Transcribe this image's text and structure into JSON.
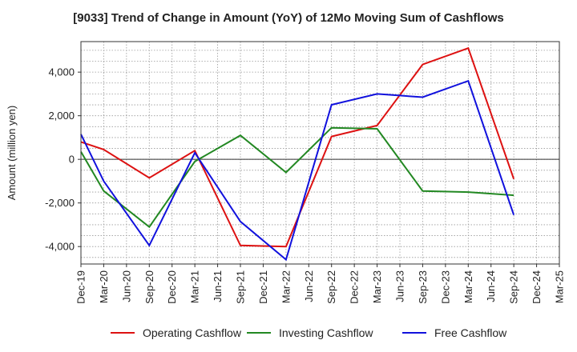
{
  "chart_data": {
    "type": "line",
    "title": "[9033]  Trend of Change in Amount (YoY) of 12Mo Moving Sum of Cashflows",
    "xlabel": "",
    "ylabel": "Amount (million yen)",
    "ylim": [
      -4800,
      5400
    ],
    "yticks": [
      -4000,
      -2000,
      0,
      2000,
      4000
    ],
    "ytick_labels": [
      "-4,000",
      "-2,000",
      "0",
      "2,000",
      "4,000"
    ],
    "grid": true,
    "legend_position": "bottom",
    "categories": [
      "Dec-19",
      "Mar-20",
      "Jun-20",
      "Sep-20",
      "Dec-20",
      "Mar-21",
      "Jun-21",
      "Sep-21",
      "Dec-21",
      "Mar-22",
      "Jun-22",
      "Sep-22",
      "Dec-22",
      "Mar-23",
      "Jun-23",
      "Sep-23",
      "Dec-23",
      "Mar-24",
      "Jun-24",
      "Sep-24",
      "Dec-24",
      "Mar-25"
    ],
    "series": [
      {
        "name": "Operating Cashflow",
        "color": "#dd1111",
        "values": [
          800,
          450,
          null,
          -850,
          null,
          400,
          null,
          -3950,
          null,
          -4000,
          null,
          1050,
          null,
          1550,
          null,
          4350,
          null,
          5100,
          null,
          -900,
          null,
          null
        ]
      },
      {
        "name": "Investing Cashflow",
        "color": "#228822",
        "values": [
          350,
          -1450,
          null,
          -3100,
          null,
          -100,
          null,
          1100,
          null,
          -600,
          null,
          1450,
          null,
          1400,
          null,
          -1450,
          null,
          -1500,
          null,
          -1650,
          null,
          null
        ]
      },
      {
        "name": "Free Cashflow",
        "color": "#1111dd",
        "values": [
          1150,
          -1000,
          null,
          -3950,
          null,
          300,
          null,
          -2850,
          null,
          -4600,
          null,
          2500,
          null,
          3000,
          null,
          2850,
          null,
          3600,
          null,
          -2550,
          null,
          null
        ]
      }
    ]
  }
}
